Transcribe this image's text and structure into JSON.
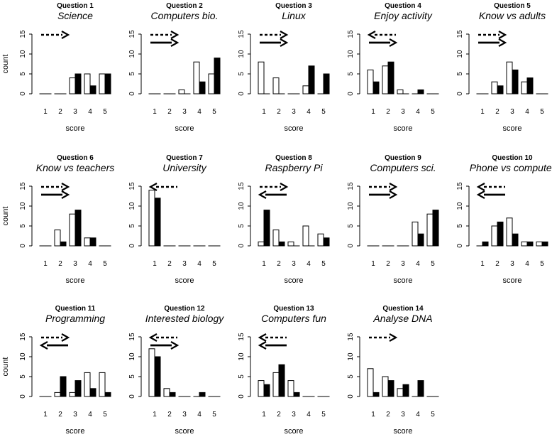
{
  "figure": {
    "ylabel": "count",
    "xlabel": "score",
    "x_ticks": [
      "1",
      "2",
      "3",
      "4",
      "5"
    ],
    "y_ticks": [
      "0",
      "5",
      "10",
      "15"
    ],
    "colors": {
      "open_bar": "#ffffff",
      "filled_bar": "#000000",
      "stroke": "#000000"
    }
  },
  "chart_data": [
    {
      "type": "bar",
      "title": "Question 1",
      "subtitle": "Science",
      "categories": [
        "1",
        "2",
        "3",
        "4",
        "5"
      ],
      "ylim": [
        0,
        15
      ],
      "series": [
        {
          "values": [
            0,
            0,
            4,
            5,
            5
          ]
        },
        {
          "values": [
            0,
            0,
            5,
            2,
            5
          ]
        }
      ],
      "arrows": [
        {
          "style": "dashed",
          "direction": "right"
        }
      ]
    },
    {
      "type": "bar",
      "title": "Question 2",
      "subtitle": "Computers bio.",
      "categories": [
        "1",
        "2",
        "3",
        "4",
        "5"
      ],
      "ylim": [
        0,
        15
      ],
      "series": [
        {
          "values": [
            0,
            0,
            1,
            8,
            5
          ]
        },
        {
          "values": [
            0,
            0,
            0,
            3,
            9
          ]
        }
      ],
      "arrows": [
        {
          "style": "dashed",
          "direction": "right"
        },
        {
          "style": "solid",
          "direction": "right"
        }
      ]
    },
    {
      "type": "bar",
      "title": "Question 3",
      "subtitle": "Linux",
      "categories": [
        "1",
        "2",
        "3",
        "4",
        "5"
      ],
      "ylim": [
        0,
        15
      ],
      "series": [
        {
          "values": [
            8,
            4,
            0,
            2,
            0
          ]
        },
        {
          "values": [
            0,
            0,
            0,
            7,
            5
          ]
        }
      ],
      "arrows": [
        {
          "style": "dashed",
          "direction": "right"
        },
        {
          "style": "solid",
          "direction": "right"
        }
      ]
    },
    {
      "type": "bar",
      "title": "Question 4",
      "subtitle": "Enjoy activity",
      "categories": [
        "1",
        "2",
        "3",
        "4",
        "5"
      ],
      "ylim": [
        0,
        15
      ],
      "series": [
        {
          "values": [
            6,
            7,
            1,
            0,
            0
          ]
        },
        {
          "values": [
            3,
            8,
            0,
            1,
            0
          ]
        }
      ],
      "arrows": [
        {
          "style": "dashed",
          "direction": "left"
        },
        {
          "style": "solid",
          "direction": "right"
        }
      ]
    },
    {
      "type": "bar",
      "title": "Question 5",
      "subtitle": "Know vs adults",
      "categories": [
        "1",
        "2",
        "3",
        "4",
        "5"
      ],
      "ylim": [
        0,
        15
      ],
      "series": [
        {
          "values": [
            0,
            3,
            8,
            3,
            0
          ]
        },
        {
          "values": [
            0,
            2,
            6,
            4,
            0
          ]
        }
      ],
      "arrows": [
        {
          "style": "dashed",
          "direction": "right"
        },
        {
          "style": "solid",
          "direction": "right"
        }
      ]
    },
    {
      "type": "bar",
      "title": "Question 6",
      "subtitle": "Know vs teachers",
      "categories": [
        "1",
        "2",
        "3",
        "4",
        "5"
      ],
      "ylim": [
        0,
        15
      ],
      "series": [
        {
          "values": [
            0,
            4,
            8,
            2,
            0
          ]
        },
        {
          "values": [
            0,
            1,
            9,
            2,
            0
          ]
        }
      ],
      "arrows": [
        {
          "style": "dashed",
          "direction": "right"
        },
        {
          "style": "solid",
          "direction": "right"
        }
      ]
    },
    {
      "type": "bar",
      "title": "Question 7",
      "subtitle": "University",
      "categories": [
        "1",
        "2",
        "3",
        "4",
        "5"
      ],
      "ylim": [
        0,
        15
      ],
      "series": [
        {
          "values": [
            14,
            0,
            0,
            0,
            0
          ]
        },
        {
          "values": [
            12,
            0,
            0,
            0,
            0
          ]
        }
      ],
      "arrows": [
        {
          "style": "dashed",
          "direction": "left"
        }
      ]
    },
    {
      "type": "bar",
      "title": "Question 8",
      "subtitle": "Raspberry Pi",
      "categories": [
        "1",
        "2",
        "3",
        "4",
        "5"
      ],
      "ylim": [
        0,
        15
      ],
      "series": [
        {
          "values": [
            1,
            4,
            1,
            5,
            3
          ]
        },
        {
          "values": [
            9,
            1,
            0,
            0,
            2
          ]
        }
      ],
      "arrows": [
        {
          "style": "dashed",
          "direction": "right"
        },
        {
          "style": "solid",
          "direction": "left"
        }
      ]
    },
    {
      "type": "bar",
      "title": "Question 9",
      "subtitle": "Computers sci.",
      "categories": [
        "1",
        "2",
        "3",
        "4",
        "5"
      ],
      "ylim": [
        0,
        15
      ],
      "series": [
        {
          "values": [
            0,
            0,
            0,
            6,
            8
          ]
        },
        {
          "values": [
            0,
            0,
            0,
            3,
            9
          ]
        }
      ],
      "arrows": [
        {
          "style": "dashed",
          "direction": "right"
        },
        {
          "style": "solid",
          "direction": "right"
        }
      ]
    },
    {
      "type": "bar",
      "title": "Question 10",
      "subtitle": "Phone vs computer",
      "categories": [
        "1",
        "2",
        "3",
        "4",
        "5"
      ],
      "ylim": [
        0,
        15
      ],
      "series": [
        {
          "values": [
            0,
            5,
            7,
            1,
            1
          ]
        },
        {
          "values": [
            1,
            6,
            3,
            1,
            1
          ]
        }
      ],
      "arrows": [
        {
          "style": "dashed",
          "direction": "left"
        },
        {
          "style": "solid",
          "direction": "left"
        }
      ]
    },
    {
      "type": "bar",
      "title": "Question 11",
      "subtitle": "Programming",
      "categories": [
        "1",
        "2",
        "3",
        "4",
        "5"
      ],
      "ylim": [
        0,
        15
      ],
      "series": [
        {
          "values": [
            0,
            1,
            1,
            6,
            6
          ]
        },
        {
          "values": [
            0,
            5,
            4,
            2,
            1
          ]
        }
      ],
      "arrows": [
        {
          "style": "dashed",
          "direction": "right"
        },
        {
          "style": "solid",
          "direction": "left"
        }
      ]
    },
    {
      "type": "bar",
      "title": "Question 12",
      "subtitle": "Interested biology",
      "categories": [
        "1",
        "2",
        "3",
        "4",
        "5"
      ],
      "ylim": [
        0,
        15
      ],
      "series": [
        {
          "values": [
            12,
            2,
            0,
            0,
            0
          ]
        },
        {
          "values": [
            10,
            1,
            0,
            1,
            0
          ]
        }
      ],
      "arrows": [
        {
          "style": "dashed",
          "direction": "left"
        },
        {
          "style": "solid",
          "direction": "right"
        }
      ]
    },
    {
      "type": "bar",
      "title": "Question 13",
      "subtitle": "Computers fun",
      "categories": [
        "1",
        "2",
        "3",
        "4",
        "5"
      ],
      "ylim": [
        0,
        15
      ],
      "series": [
        {
          "values": [
            4,
            6,
            4,
            0,
            0
          ]
        },
        {
          "values": [
            3,
            8,
            1,
            0,
            0
          ]
        }
      ],
      "arrows": [
        {
          "style": "dashed",
          "direction": "left"
        },
        {
          "style": "solid",
          "direction": "left"
        }
      ]
    },
    {
      "type": "bar",
      "title": "Question 14",
      "subtitle": "Analyse DNA",
      "categories": [
        "1",
        "2",
        "3",
        "4",
        "5"
      ],
      "ylim": [
        0,
        15
      ],
      "series": [
        {
          "values": [
            7,
            5,
            2,
            0,
            0
          ]
        },
        {
          "values": [
            1,
            4,
            3,
            4,
            0
          ]
        }
      ],
      "arrows": [
        {
          "style": "dashed",
          "direction": "right"
        }
      ]
    }
  ]
}
